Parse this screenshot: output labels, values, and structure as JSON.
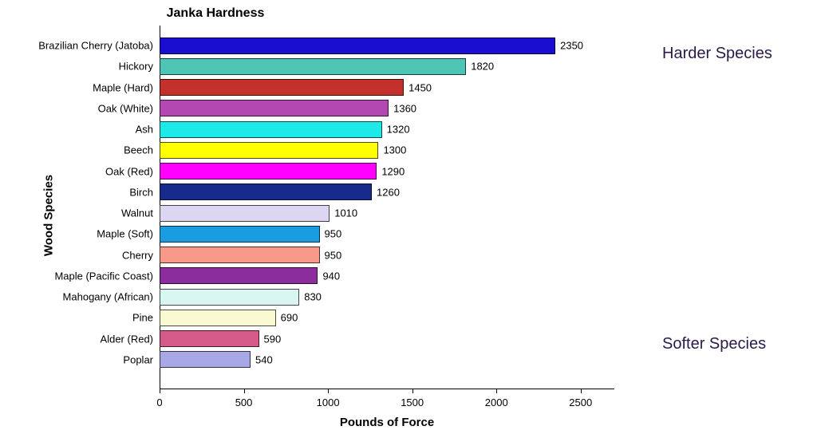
{
  "chart": {
    "type": "bar-horizontal",
    "title": "Janka Hardness",
    "ylabel": "Wood Species",
    "xlabel": "Pounds of Force",
    "xlim": [
      0,
      2700
    ],
    "xticks": [
      0,
      500,
      1000,
      1500,
      2000,
      2500
    ],
    "background_color": "#ffffff",
    "bar_border_color": "#333333",
    "title_fontsize": 16,
    "axis_label_fontsize": 15,
    "tick_fontsize": 13,
    "value_fontsize": 13,
    "bars": [
      {
        "label": "Brazilian Cherry (Jatoba)",
        "value": 2350,
        "color": "#1a0fd0"
      },
      {
        "label": "Hickory",
        "value": 1820,
        "color": "#4ec4b4"
      },
      {
        "label": "Maple (Hard)",
        "value": 1450,
        "color": "#c4302b"
      },
      {
        "label": "Oak (White)",
        "value": 1360,
        "color": "#b348b3"
      },
      {
        "label": "Ash",
        "value": 1320,
        "color": "#1de9e9"
      },
      {
        "label": "Beech",
        "value": 1300,
        "color": "#ffff00"
      },
      {
        "label": "Oak (Red)",
        "value": 1290,
        "color": "#ff00ff"
      },
      {
        "label": "Birch",
        "value": 1260,
        "color": "#172b8c"
      },
      {
        "label": "Walnut",
        "value": 1010,
        "color": "#dcd6f2"
      },
      {
        "label": "Maple (Soft)",
        "value": 950,
        "color": "#1a9de0"
      },
      {
        "label": "Cherry",
        "value": 950,
        "color": "#f79a8a"
      },
      {
        "label": "Maple (Pacific Coast)",
        "value": 940,
        "color": "#8c2d9e"
      },
      {
        "label": "Mahogany (African)",
        "value": 830,
        "color": "#d9f6f2"
      },
      {
        "label": "Pine",
        "value": 690,
        "color": "#fafad2"
      },
      {
        "label": "Alder (Red)",
        "value": 590,
        "color": "#d65a88"
      },
      {
        "label": "Poplar",
        "value": 540,
        "color": "#a8a8e6"
      }
    ],
    "side_labels": {
      "top": "Harder Species",
      "bottom": "Softer Species",
      "color": "#2a1a4a",
      "fontsize": 20
    }
  }
}
